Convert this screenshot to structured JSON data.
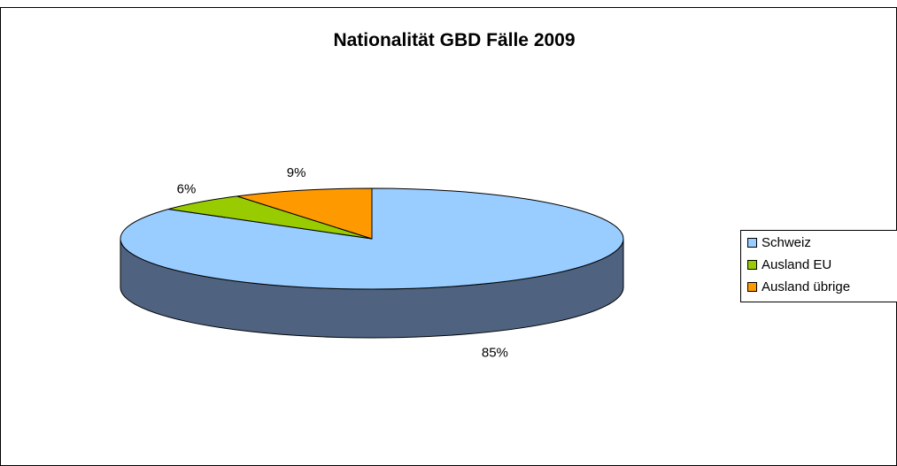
{
  "chart_data": {
    "type": "pie",
    "title": "Nationalität GBD Fälle 2009",
    "categories": [
      "Schweiz",
      "Ausland EU",
      "Ausland übrige"
    ],
    "values": [
      85,
      6,
      9
    ],
    "labels": [
      "85%",
      "6%",
      "9%"
    ],
    "colors": [
      "#99ccff",
      "#99cc00",
      "#ff9900"
    ],
    "side_color": "#4f6380",
    "legend_position": "right",
    "style": "3d"
  }
}
